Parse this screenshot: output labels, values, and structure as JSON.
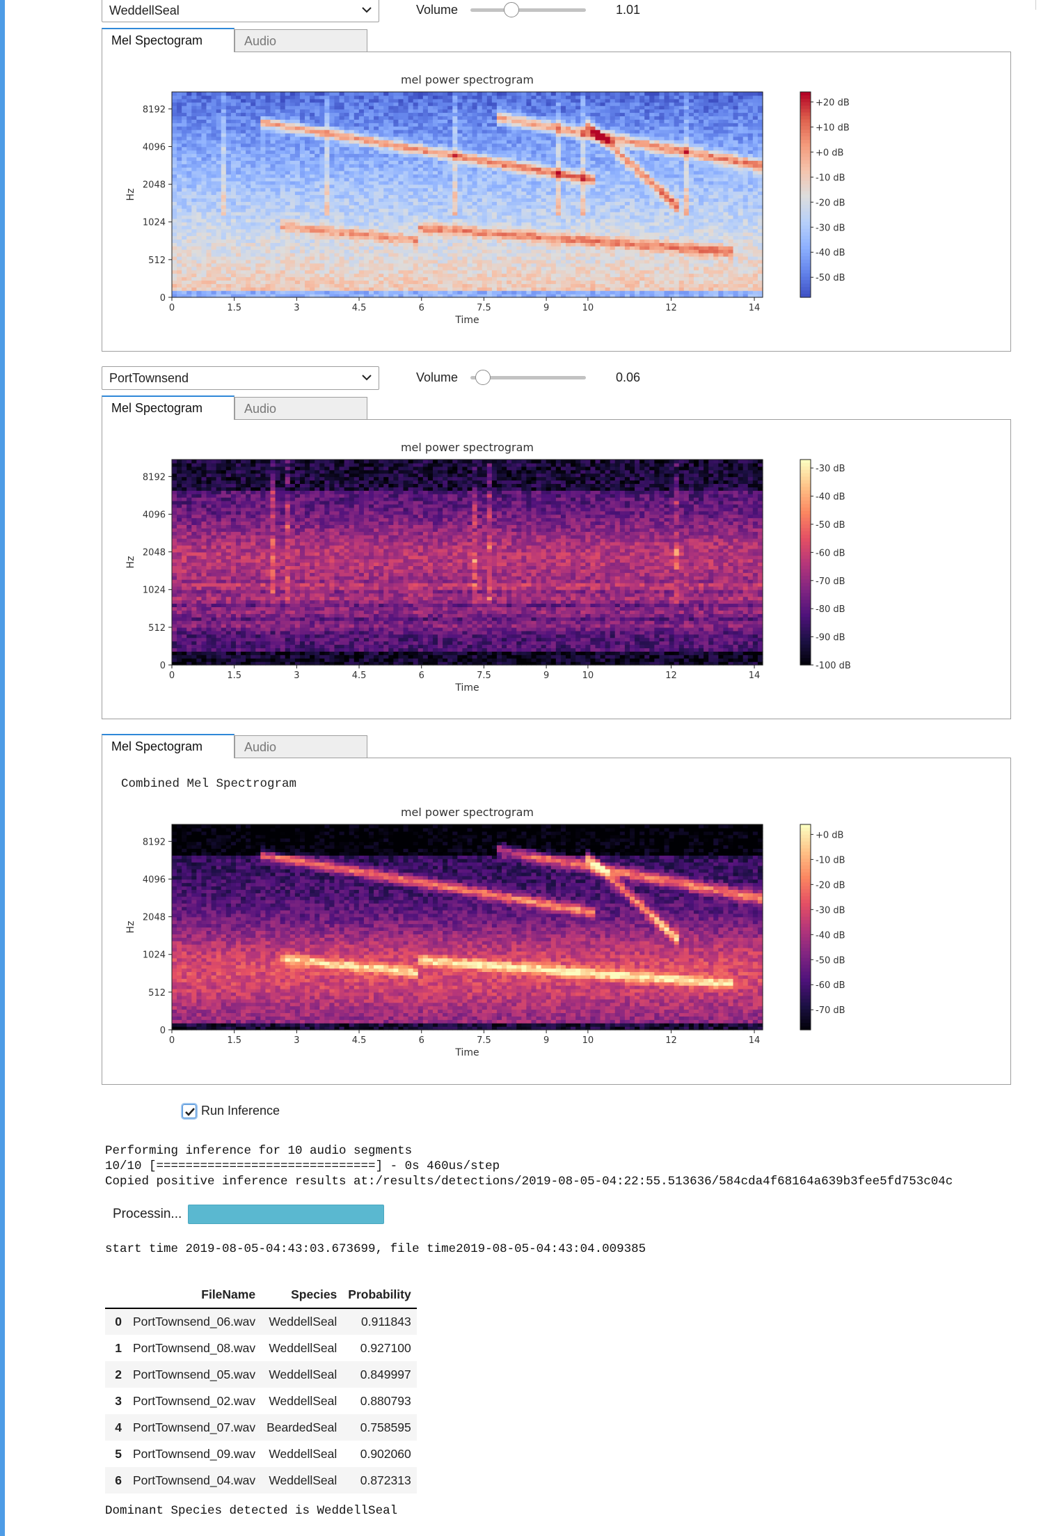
{
  "widget1": {
    "dropdown_value": "WeddellSeal",
    "volume_label": "Volume",
    "volume_value": "1.01",
    "volume_level": 0.33
  },
  "widget2": {
    "dropdown_value": "PortTownsend",
    "volume_label": "Volume",
    "volume_value": "0.06",
    "volume_level": 0.05
  },
  "tabs": {
    "mel": "Mel Spectogram",
    "audio": "Audio"
  },
  "combined_label": "Combined Mel Spectrogram",
  "colors": {
    "cell_bar": "#4e9ce6",
    "tab_active_border": "#2f88d8",
    "progress": "#5ab8d0"
  },
  "chart_data": [
    {
      "type": "heatmap",
      "colormap": "coolwarm",
      "title": "mel power spectrogram",
      "xlabel": "Time",
      "ylabel": "Hz",
      "xticks": [
        "0",
        "1.5",
        "3",
        "4.5",
        "6",
        "7.5",
        "9",
        "10",
        "12",
        "14"
      ],
      "yticks": [
        "0",
        "512",
        "1024",
        "2048",
        "4096",
        "8192"
      ],
      "xlim": [
        0,
        14.2
      ],
      "colorbar_ticks": [
        "+20 dB",
        "+10 dB",
        "+0 dB",
        "-10 dB",
        "-20 dB",
        "-30 dB",
        "-40 dB",
        "-50 dB"
      ],
      "colorbar_range": [
        -58,
        24
      ]
    },
    {
      "type": "heatmap",
      "colormap": "magma",
      "title": "mel power spectrogram",
      "xlabel": "Time",
      "ylabel": "Hz",
      "xticks": [
        "0",
        "1.5",
        "3",
        "4.5",
        "6",
        "7.5",
        "9",
        "10",
        "12",
        "14"
      ],
      "yticks": [
        "0",
        "512",
        "1024",
        "2048",
        "4096",
        "8192"
      ],
      "xlim": [
        0,
        14.2
      ],
      "colorbar_ticks": [
        "-30 dB",
        "-40 dB",
        "-50 dB",
        "-60 dB",
        "-70 dB",
        "-80 dB",
        "-90 dB",
        "-100 dB"
      ],
      "colorbar_range": [
        -100,
        -27
      ]
    },
    {
      "type": "heatmap",
      "colormap": "magma",
      "title": "mel power spectrogram",
      "xlabel": "Time",
      "ylabel": "Hz",
      "xticks": [
        "0",
        "1.5",
        "3",
        "4.5",
        "6",
        "7.5",
        "9",
        "10",
        "12",
        "14"
      ],
      "yticks": [
        "0",
        "512",
        "1024",
        "2048",
        "4096",
        "8192"
      ],
      "xlim": [
        0,
        14.2
      ],
      "colorbar_ticks": [
        "+0 dB",
        "-10 dB",
        "-20 dB",
        "-30 dB",
        "-40 dB",
        "-50 dB",
        "-60 dB",
        "-70 dB"
      ],
      "colorbar_range": [
        -78,
        4
      ]
    }
  ],
  "run_inference": {
    "label": "Run Inference",
    "checked": true
  },
  "output": {
    "line1": "Performing inference for 10 audio segments",
    "line2": "10/10 [==============================] - 0s 460us/step",
    "line3": "Copied positive inference results at:/results/detections/2019-08-05-04:22:55.513636/584cda4f68164a639b3fee5fd753c04c",
    "progress_label": "Processin...",
    "progress_fraction": 1.0,
    "time_line": "start time 2019-08-05-04:43:03.673699, file time2019-08-05-04:43:04.009385",
    "dominant": "Dominant Species detected is WeddellSeal"
  },
  "table": {
    "headers": [
      "",
      "FileName",
      "Species",
      "Probability"
    ],
    "rows": [
      [
        "0",
        "PortTownsend_06.wav",
        "WeddellSeal",
        "0.911843"
      ],
      [
        "1",
        "PortTownsend_08.wav",
        "WeddellSeal",
        "0.927100"
      ],
      [
        "2",
        "PortTownsend_05.wav",
        "WeddellSeal",
        "0.849997"
      ],
      [
        "3",
        "PortTownsend_02.wav",
        "WeddellSeal",
        "0.880793"
      ],
      [
        "4",
        "PortTownsend_07.wav",
        "BeardedSeal",
        "0.758595"
      ],
      [
        "5",
        "PortTownsend_09.wav",
        "WeddellSeal",
        "0.902060"
      ],
      [
        "6",
        "PortTownsend_04.wav",
        "WeddellSeal",
        "0.872313"
      ]
    ]
  }
}
